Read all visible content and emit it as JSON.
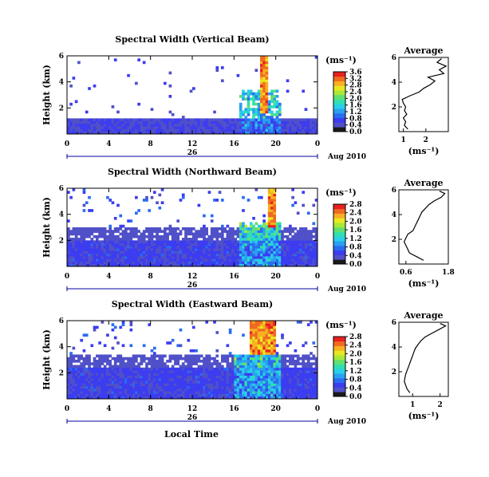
{
  "colors": {
    "colormap": [
      "#1a1a1a",
      "#5050c8",
      "#3c3cf0",
      "#2a6cf0",
      "#2aa0f0",
      "#28d0e8",
      "#30e0b0",
      "#60e070",
      "#a8e838",
      "#e8e820",
      "#f8b020",
      "#f06a20",
      "#e82020"
    ],
    "panel_background": "#ffffff",
    "time_axis": "#0000a0"
  },
  "x_axis_label": "Local Time",
  "date_label": "Aug 2010",
  "day_label": "26",
  "colorbar_unit": "(ms⁻¹)",
  "avg_unit": "(ms⁻¹)",
  "chart_data": [
    {
      "type": "heatmap",
      "title": "Spectral Width (Vertical Beam)",
      "ylabel": "Height (km)",
      "xlim": [
        0,
        24
      ],
      "ylim": [
        0,
        6
      ],
      "x_ticks": [
        "0",
        "4",
        "8",
        "12",
        "16",
        "20",
        "0"
      ],
      "y_ticks": [
        "2",
        "4",
        "6"
      ],
      "colorbar": {
        "range": [
          0,
          3.6
        ],
        "ticks": [
          "0.0",
          "0.4",
          "0.8",
          "1.2",
          "1.6",
          "2.0",
          "2.4",
          "2.8",
          "3.2",
          "3.6"
        ]
      },
      "average": {
        "title": "Average",
        "xlim": [
          0.8,
          3.0
        ],
        "x_ticks": [
          "1",
          "2"
        ],
        "y_ticks": [
          "2",
          "4",
          "6"
        ],
        "height": [
          0.2,
          0.5,
          0.8,
          1.1,
          1.4,
          1.7,
          2.0,
          2.3,
          2.6,
          2.9,
          3.2,
          3.5,
          3.8,
          4.1,
          4.4,
          4.7,
          5.0,
          5.3,
          5.6,
          5.9
        ],
        "value": [
          1.2,
          1.05,
          1.1,
          1.0,
          1.15,
          1.05,
          1.1,
          1.0,
          0.95,
          1.3,
          1.7,
          1.9,
          2.2,
          2.4,
          2.1,
          2.8,
          2.6,
          2.9,
          2.5,
          2.7
        ]
      }
    },
    {
      "type": "heatmap",
      "title": "Spectral Width (Northward Beam)",
      "ylabel": "Height (km)",
      "xlim": [
        0,
        24
      ],
      "ylim": [
        0,
        6
      ],
      "x_ticks": [
        "0",
        "4",
        "8",
        "12",
        "16",
        "20",
        "0"
      ],
      "y_ticks": [
        "2",
        "4",
        "6"
      ],
      "colorbar": {
        "range": [
          0,
          2.8
        ],
        "ticks": [
          "0.0",
          "0.4",
          "0.8",
          "1.2",
          "1.6",
          "2.0",
          "2.4",
          "2.8"
        ]
      },
      "average": {
        "title": "Average",
        "xlim": [
          0.4,
          1.8
        ],
        "x_ticks": [
          "0.6",
          "1.8"
        ],
        "y_ticks": [
          "2",
          "4",
          "6"
        ],
        "height": [
          0.3,
          0.6,
          0.9,
          1.2,
          1.5,
          1.8,
          2.1,
          2.4,
          2.7,
          3.0,
          3.3,
          3.6,
          3.9,
          4.2,
          4.5,
          4.8,
          5.1,
          5.4,
          5.7,
          5.9
        ],
        "value": [
          1.1,
          0.9,
          0.7,
          0.65,
          0.6,
          0.55,
          0.6,
          0.65,
          0.8,
          0.85,
          0.9,
          0.95,
          1.0,
          1.05,
          1.15,
          1.25,
          1.4,
          1.6,
          1.7,
          1.55
        ]
      }
    },
    {
      "type": "heatmap",
      "title": "Spectral Width (Eastward Beam)",
      "ylabel": "Height (km)",
      "xlim": [
        0,
        24
      ],
      "ylim": [
        0,
        6
      ],
      "x_ticks": [
        "0",
        "4",
        "8",
        "12",
        "16",
        "20",
        "0"
      ],
      "y_ticks": [
        "2",
        "4",
        "6"
      ],
      "colorbar": {
        "range": [
          0,
          2.8
        ],
        "ticks": [
          "0.0",
          "0.4",
          "0.8",
          "1.2",
          "1.6",
          "2.0",
          "2.4",
          "2.8"
        ]
      },
      "average": {
        "title": "Average",
        "xlim": [
          0.5,
          2.3
        ],
        "x_ticks": [
          "1",
          "2"
        ],
        "y_ticks": [
          "2",
          "4",
          "6"
        ],
        "height": [
          0.3,
          0.6,
          0.9,
          1.2,
          1.5,
          1.8,
          2.1,
          2.4,
          2.7,
          3.0,
          3.3,
          3.6,
          3.9,
          4.2,
          4.5,
          4.8,
          5.1,
          5.4,
          5.7,
          5.9
        ],
        "value": [
          0.9,
          0.8,
          0.75,
          0.7,
          0.72,
          0.75,
          0.8,
          0.85,
          0.9,
          0.95,
          1.0,
          1.05,
          1.1,
          1.2,
          1.3,
          1.45,
          1.7,
          1.95,
          2.2,
          2.0
        ]
      }
    }
  ]
}
